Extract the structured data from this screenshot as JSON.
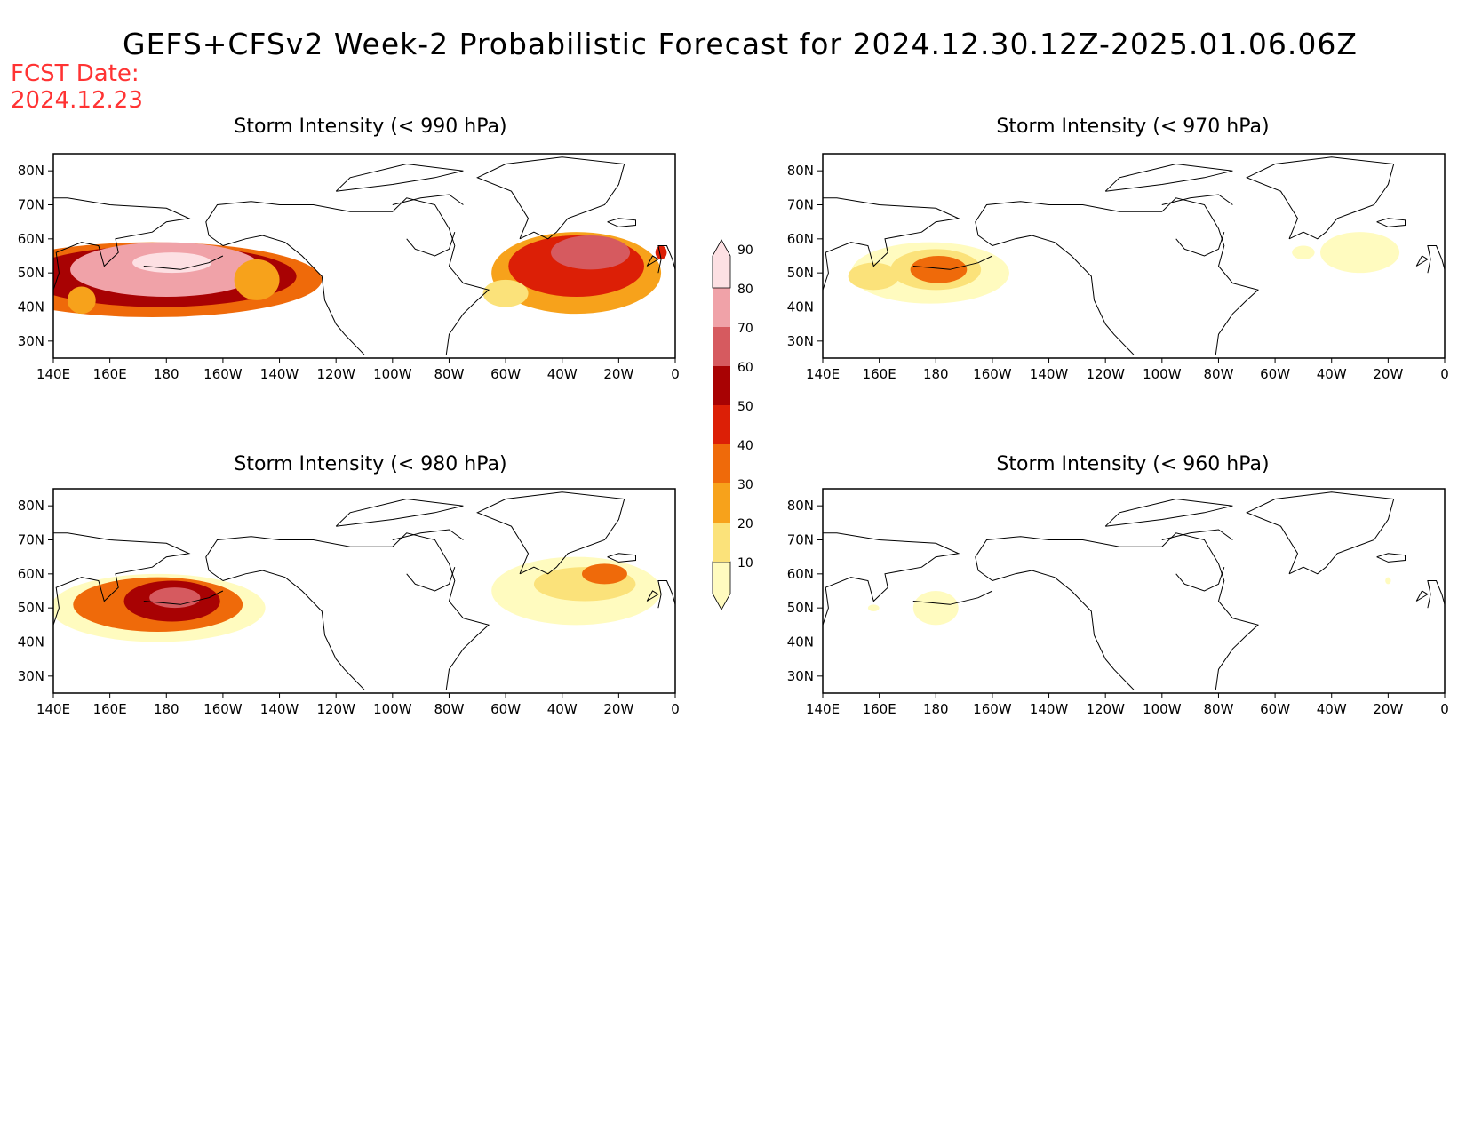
{
  "header": {
    "title": "GEFS+CFSv2 Week-2 Probabilistic Forecast for 2024.12.30.12Z-2025.01.06.06Z",
    "fcst_label": "FCST Date:",
    "fcst_date": "2024.12.23"
  },
  "axes": {
    "lon_labels": [
      "140E",
      "160E",
      "180",
      "160W",
      "140W",
      "120W",
      "100W",
      "80W",
      "60W",
      "40W",
      "20W",
      "0"
    ],
    "lat_labels": [
      "80N",
      "70N",
      "60N",
      "50N",
      "40N",
      "30N"
    ]
  },
  "colorbar": {
    "levels": [
      "10",
      "20",
      "30",
      "40",
      "50",
      "60",
      "70",
      "80",
      "90"
    ],
    "colors": [
      "#fffbbf",
      "#fbe27a",
      "#f7a21b",
      "#ef6a0a",
      "#dc1f06",
      "#a80203",
      "#d65a5f",
      "#f0a2a8",
      "#fde0e3"
    ]
  },
  "panels": [
    {
      "title": "Storm Intensity (< 990 hPa)",
      "blobs": [
        {
          "lon": 175,
          "lat": 48,
          "rx": 60,
          "ry": 11,
          "value": 45
        },
        {
          "lon": 178,
          "lat": 49,
          "rx": 48,
          "ry": 9,
          "value": 65
        },
        {
          "lon": 180,
          "lat": 51,
          "rx": 34,
          "ry": 8,
          "value": 85
        },
        {
          "lon": 182,
          "lat": 53,
          "rx": 14,
          "ry": 3,
          "value": 95
        },
        {
          "lon": 150,
          "lat": 42,
          "rx": 5,
          "ry": 4,
          "value": 30
        },
        {
          "lon": 212,
          "lat": 48,
          "rx": 8,
          "ry": 6,
          "value": 35
        },
        {
          "lon": 325,
          "lat": 50,
          "rx": 30,
          "ry": 12,
          "value": 35
        },
        {
          "lon": 325,
          "lat": 52,
          "rx": 24,
          "ry": 9,
          "value": 55
        },
        {
          "lon": 330,
          "lat": 56,
          "rx": 14,
          "ry": 5,
          "value": 78
        },
        {
          "lon": 300,
          "lat": 44,
          "rx": 8,
          "ry": 4,
          "value": 20
        },
        {
          "lon": 355,
          "lat": 56,
          "rx": 2,
          "ry": 2,
          "value": 55
        }
      ]
    },
    {
      "title": "Storm Intensity (< 970 hPa)",
      "blobs": [
        {
          "lon": 178,
          "lat": 50,
          "rx": 28,
          "ry": 9,
          "value": 15
        },
        {
          "lon": 180,
          "lat": 51,
          "rx": 16,
          "ry": 6,
          "value": 25
        },
        {
          "lon": 181,
          "lat": 51,
          "rx": 10,
          "ry": 4,
          "value": 45
        },
        {
          "lon": 158,
          "lat": 49,
          "rx": 9,
          "ry": 4,
          "value": 22
        },
        {
          "lon": 330,
          "lat": 56,
          "rx": 14,
          "ry": 6,
          "value": 15
        },
        {
          "lon": 310,
          "lat": 56,
          "rx": 4,
          "ry": 2,
          "value": 15
        }
      ]
    },
    {
      "title": "Storm Intensity (< 980 hPa)",
      "blobs": [
        {
          "lon": 177,
          "lat": 50,
          "rx": 38,
          "ry": 10,
          "value": 15
        },
        {
          "lon": 177,
          "lat": 51,
          "rx": 30,
          "ry": 8,
          "value": 45
        },
        {
          "lon": 182,
          "lat": 52,
          "rx": 17,
          "ry": 6,
          "value": 62
        },
        {
          "lon": 183,
          "lat": 53,
          "rx": 9,
          "ry": 3,
          "value": 75
        },
        {
          "lon": 325,
          "lat": 55,
          "rx": 30,
          "ry": 10,
          "value": 15
        },
        {
          "lon": 328,
          "lat": 57,
          "rx": 18,
          "ry": 5,
          "value": 25
        },
        {
          "lon": 335,
          "lat": 60,
          "rx": 8,
          "ry": 3,
          "value": 40
        }
      ]
    },
    {
      "title": "Storm Intensity (< 960 hPa)",
      "blobs": [
        {
          "lon": 180,
          "lat": 50,
          "rx": 8,
          "ry": 5,
          "value": 12
        },
        {
          "lon": 158,
          "lat": 50,
          "rx": 2,
          "ry": 1,
          "value": 12
        },
        {
          "lon": 340,
          "lat": 58,
          "rx": 1,
          "ry": 1,
          "value": 12
        }
      ]
    }
  ]
}
